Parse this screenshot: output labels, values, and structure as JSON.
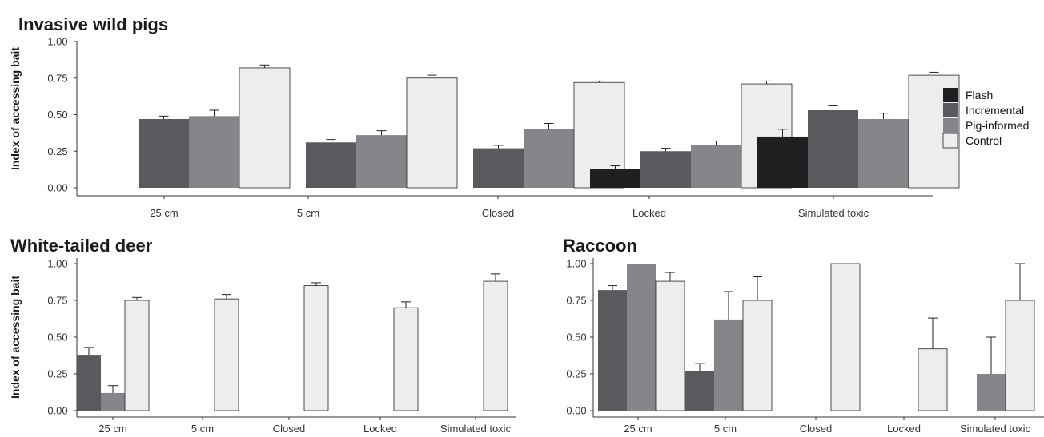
{
  "legend": {
    "items": [
      {
        "label": "Flash",
        "color": "#1f1f21"
      },
      {
        "label": "Incremental",
        "color": "#5a5a5e"
      },
      {
        "label": "Pig-informed",
        "color": "#86868a"
      },
      {
        "label": "Control",
        "color": "#ededed"
      }
    ]
  },
  "chart_data": [
    {
      "type": "bar",
      "title": "Invasive wild pigs",
      "ylabel": "Index of accessing bait",
      "xlabel": "",
      "ylim": [
        0,
        1
      ],
      "yticks": [
        "0.00",
        "0.25",
        "0.50",
        "0.75",
        "1.00"
      ],
      "grid": false,
      "categories": [
        "25 cm",
        "5 cm",
        "Closed",
        "Locked",
        "Simulated toxic"
      ],
      "series": [
        {
          "name": "Flash",
          "values": [
            null,
            null,
            null,
            0.13,
            0.35
          ],
          "errors": [
            null,
            null,
            null,
            0.02,
            0.05
          ]
        },
        {
          "name": "Incremental",
          "values": [
            0.47,
            0.31,
            0.27,
            0.25,
            0.53
          ],
          "errors": [
            0.02,
            0.02,
            0.02,
            0.02,
            0.03
          ]
        },
        {
          "name": "Pig-informed",
          "values": [
            0.49,
            0.36,
            0.4,
            0.29,
            0.47
          ],
          "errors": [
            0.04,
            0.03,
            0.04,
            0.03,
            0.04
          ]
        },
        {
          "name": "Control",
          "values": [
            0.82,
            0.75,
            0.72,
            0.71,
            0.77
          ],
          "errors": [
            0.02,
            0.02,
            0.01,
            0.02,
            0.02
          ]
        }
      ]
    },
    {
      "type": "bar",
      "title": "White-tailed deer",
      "ylabel": "Index of accessing bait",
      "xlabel": "",
      "ylim": [
        0,
        1
      ],
      "yticks": [
        "0.00",
        "0.25",
        "0.50",
        "0.75",
        "1.00"
      ],
      "grid": false,
      "categories": [
        "25 cm",
        "5 cm",
        "Closed",
        "Locked",
        "Simulated toxic"
      ],
      "series": [
        {
          "name": "Incremental",
          "values": [
            0.38,
            0.0,
            0.0,
            0.0,
            0.0
          ],
          "errors": [
            0.05,
            null,
            null,
            null,
            null
          ]
        },
        {
          "name": "Pig-informed",
          "values": [
            0.12,
            0.0,
            0.0,
            0.0,
            0.0
          ],
          "errors": [
            0.05,
            null,
            null,
            null,
            null
          ]
        },
        {
          "name": "Control",
          "values": [
            0.75,
            0.76,
            0.85,
            0.7,
            0.88
          ],
          "errors": [
            0.02,
            0.03,
            0.02,
            0.04,
            0.05
          ]
        }
      ]
    },
    {
      "type": "bar",
      "title": "Raccoon",
      "ylabel": "",
      "xlabel": "",
      "ylim": [
        0,
        1
      ],
      "yticks": [
        "0.00",
        "0.25",
        "0.50",
        "0.75",
        "1.00"
      ],
      "grid": false,
      "categories": [
        "25 cm",
        "5 cm",
        "Closed",
        "Locked",
        "Simulated toxic"
      ],
      "series": [
        {
          "name": "Incremental",
          "values": [
            0.82,
            0.27,
            0.0,
            0.0,
            0.0
          ],
          "errors": [
            0.03,
            0.05,
            null,
            null,
            null
          ]
        },
        {
          "name": "Pig-informed",
          "values": [
            1.0,
            0.62,
            0.0,
            0.0,
            0.25
          ],
          "errors": [
            null,
            0.19,
            null,
            null,
            0.25
          ]
        },
        {
          "name": "Control",
          "values": [
            0.88,
            0.75,
            1.0,
            0.42,
            0.75
          ],
          "errors": [
            0.06,
            0.16,
            null,
            0.21,
            0.25
          ]
        }
      ]
    }
  ]
}
